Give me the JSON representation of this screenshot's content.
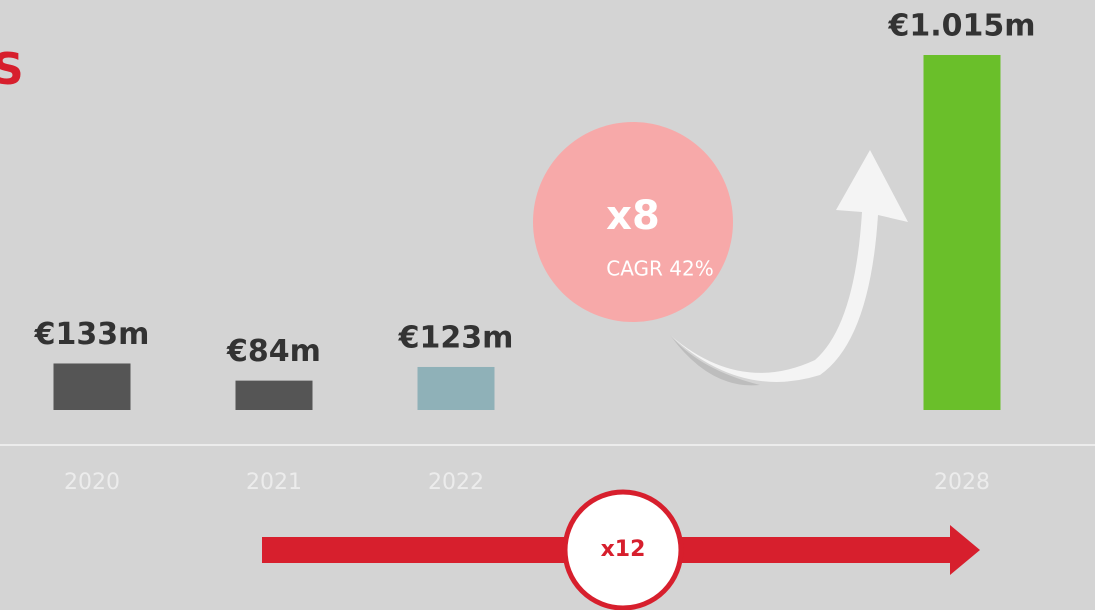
{
  "chart_data": {
    "type": "bar",
    "title": "S",
    "categories": [
      "2020",
      "2021",
      "2022",
      "2028"
    ],
    "values": [
      133,
      84,
      123,
      1015
    ],
    "value_labels": [
      "€133m",
      "€84m",
      "€123m",
      "€1.015m"
    ],
    "colors": [
      "#555555",
      "#555555",
      "#8fb1b8",
      "#6abf2a"
    ],
    "annotations": {
      "multiplier": "x8",
      "cagr": "CAGR 42%",
      "total_multiplier": "x12"
    }
  }
}
